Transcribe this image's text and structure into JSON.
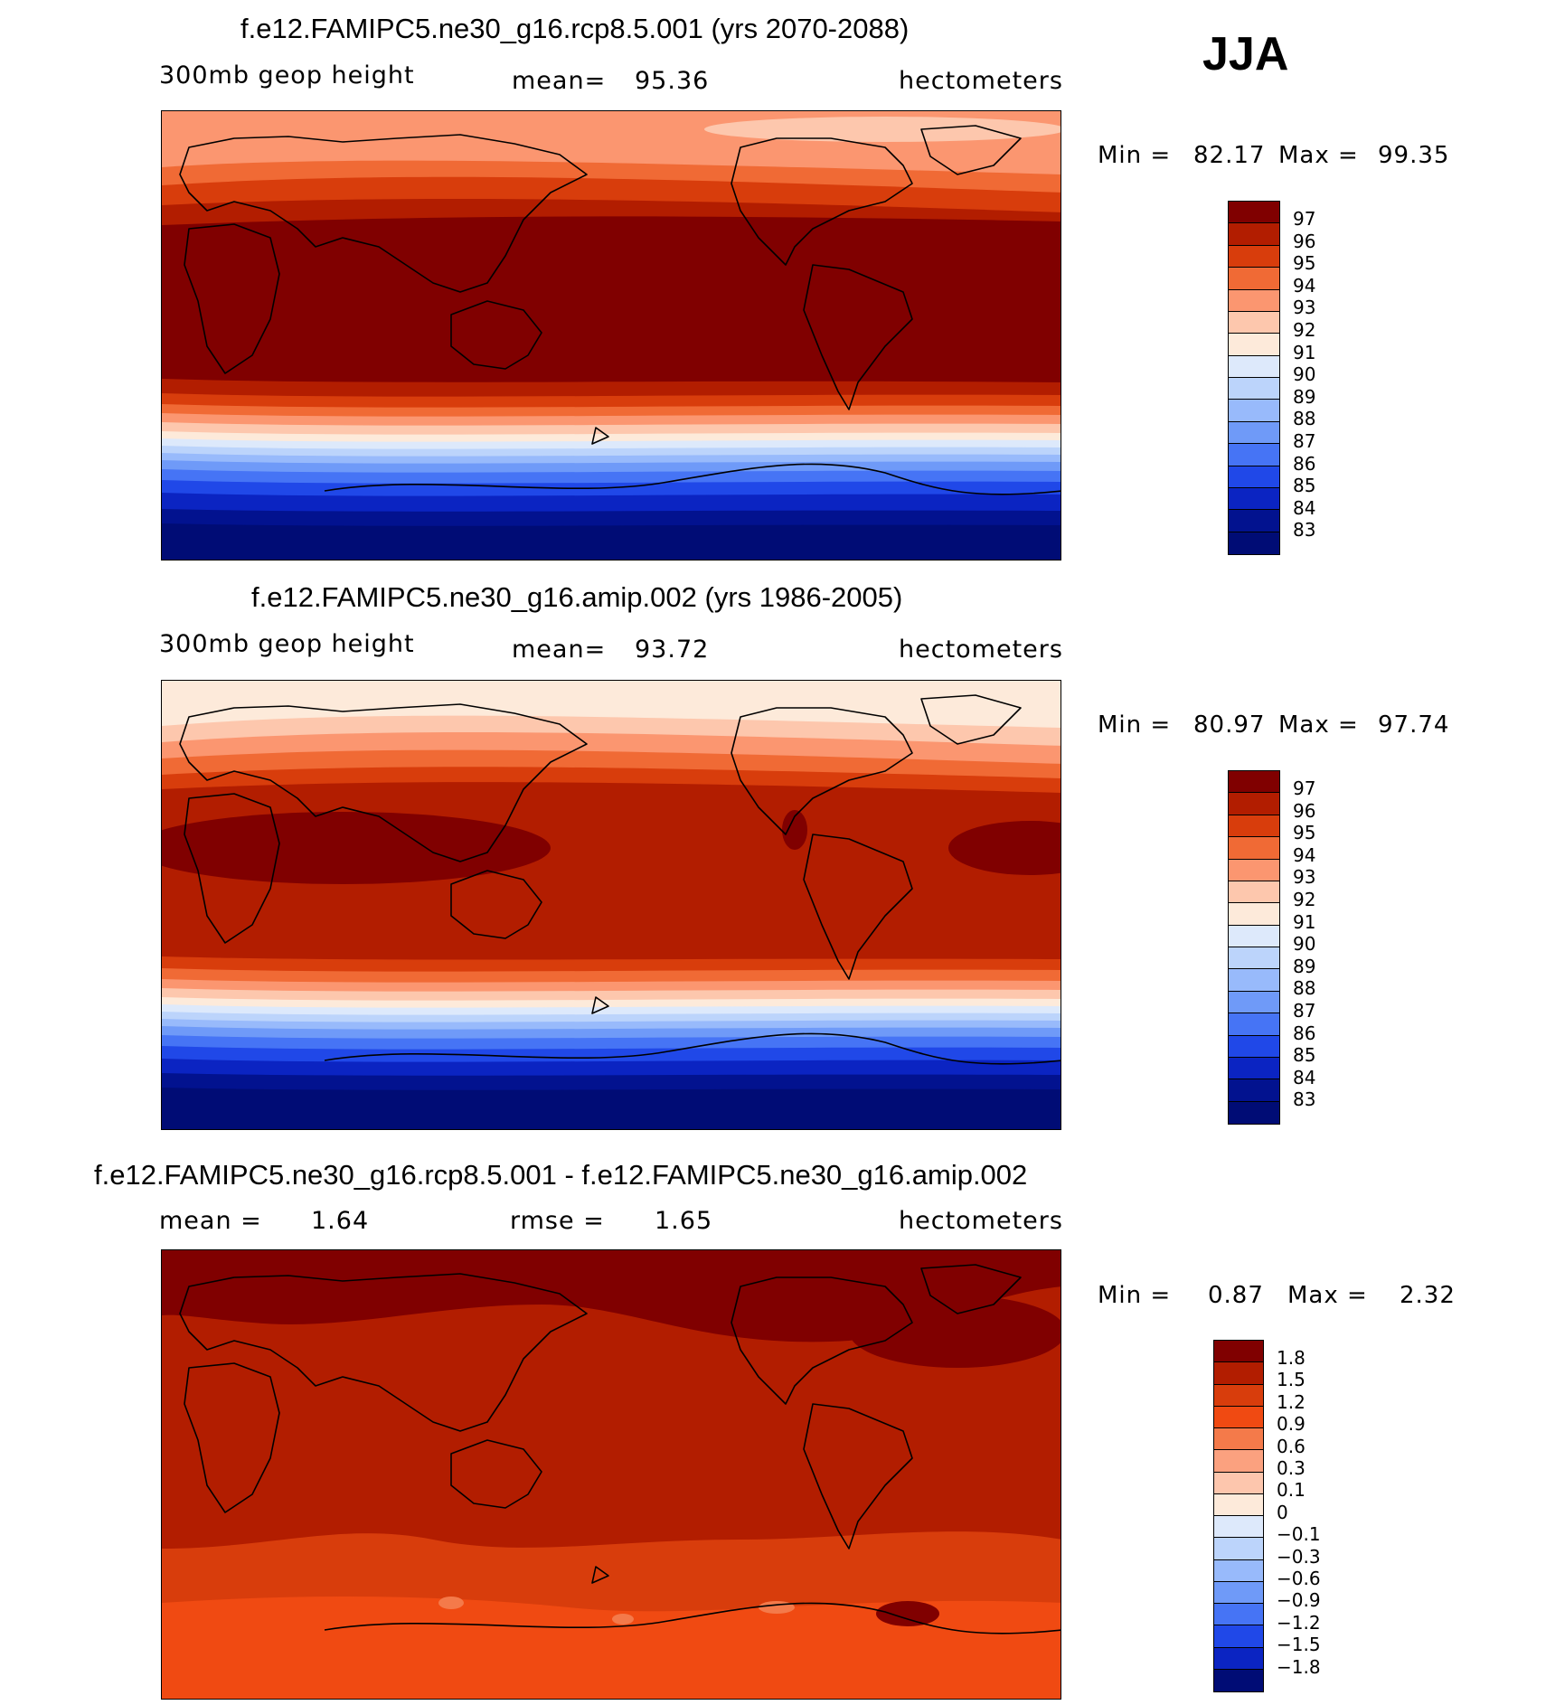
{
  "season": "JJA",
  "panels": [
    {
      "title": "f.e12.FAMIPC5.ne30_g16.rcp8.5.001 (yrs 2070-2088)",
      "variable": "300mb geop height",
      "mean_label": "mean=",
      "mean_value": "95.36",
      "units": "hectometers",
      "min_label": "Min =",
      "min_value": "82.17",
      "max_label": "Max =",
      "max_value": "99.35",
      "colorbar_labels": [
        "97",
        "96",
        "95",
        "94",
        "93",
        "92",
        "91",
        "90",
        "89",
        "88",
        "87",
        "86",
        "85",
        "84",
        "83"
      ]
    },
    {
      "title": "f.e12.FAMIPC5.ne30_g16.amip.002 (yrs 1986-2005)",
      "variable": "300mb geop height",
      "mean_label": "mean=",
      "mean_value": "93.72",
      "units": "hectometers",
      "min_label": "Min =",
      "min_value": "80.97",
      "max_label": "Max =",
      "max_value": "97.74",
      "colorbar_labels": [
        "97",
        "96",
        "95",
        "94",
        "93",
        "92",
        "91",
        "90",
        "89",
        "88",
        "87",
        "86",
        "85",
        "84",
        "83"
      ]
    },
    {
      "title": "f.e12.FAMIPC5.ne30_g16.rcp8.5.001 - f.e12.FAMIPC5.ne30_g16.amip.002",
      "mean_label": "mean =",
      "mean_value": "1.64",
      "rmse_label": "rmse =",
      "rmse_value": "1.65",
      "units": "hectometers",
      "min_label": "Min =",
      "min_value": "0.87",
      "max_label": "Max =",
      "max_value": "2.32",
      "colorbar_labels": [
        "1.8",
        "1.5",
        "1.2",
        "0.9",
        "0.6",
        "0.3",
        "0.1",
        "0",
        "−0.1",
        "−0.3",
        "−0.6",
        "−0.9",
        "−1.2",
        "−1.5",
        "−1.8"
      ]
    }
  ],
  "colors": {
    "warm": [
      "#800000",
      "#b21d00",
      "#d83d0c",
      "#f06a35",
      "#fb9670",
      "#fdc7ad",
      "#fdeada"
    ],
    "cool": [
      "#dde9fb",
      "#bcd4fb",
      "#98bafb",
      "#6f9af8",
      "#4674f5",
      "#2048e8",
      "#0b24c2",
      "#02128f",
      "#000c75"
    ],
    "bar16": [
      "#800000",
      "#b21d00",
      "#d83d0c",
      "#f04a12",
      "#f47a4a",
      "#fba17f",
      "#fdc6ad",
      "#fdeada",
      "#dde9fb",
      "#bcd4fb",
      "#98bafb",
      "#6f9af8",
      "#4674f5",
      "#2048e8",
      "#0b24c2",
      "#000c75"
    ]
  }
}
